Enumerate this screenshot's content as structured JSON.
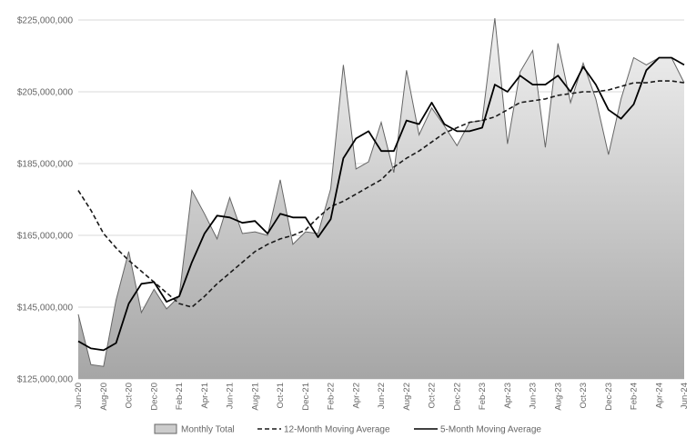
{
  "chart_data": {
    "type": "area",
    "title": "",
    "xlabel": "",
    "ylabel": "",
    "ylim": [
      125000000,
      225000000
    ],
    "y_ticks": [
      125000000,
      145000000,
      165000000,
      185000000,
      205000000,
      225000000
    ],
    "y_tick_labels": [
      "$125,000,000",
      "$145,000,000",
      "$165,000,000",
      "$185,000,000",
      "$205,000,000",
      "$225,000,000"
    ],
    "x": [
      "Jun-20",
      "Jul-20",
      "Aug-20",
      "Sep-20",
      "Oct-20",
      "Nov-20",
      "Dec-20",
      "Jan-21",
      "Feb-21",
      "Mar-21",
      "Apr-21",
      "May-21",
      "Jun-21",
      "Jul-21",
      "Aug-21",
      "Sep-21",
      "Oct-21",
      "Nov-21",
      "Dec-21",
      "Jan-22",
      "Feb-22",
      "Mar-22",
      "Apr-22",
      "May-22",
      "Jun-22",
      "Jul-22",
      "Aug-22",
      "Sep-22",
      "Oct-22",
      "Nov-22",
      "Dec-22",
      "Jan-23",
      "Feb-23",
      "Mar-23",
      "Apr-23",
      "May-23",
      "Jun-23",
      "Jul-23",
      "Aug-23",
      "Sep-23",
      "Oct-23",
      "Nov-23",
      "Dec-23",
      "Jan-24",
      "Feb-24",
      "Mar-24",
      "Apr-24",
      "May-24",
      "Jun-24"
    ],
    "x_tick_labels": [
      "Jun-20",
      "Aug-20",
      "Oct-20",
      "Dec-20",
      "Feb-21",
      "Apr-21",
      "Jun-21",
      "Aug-21",
      "Oct-21",
      "Dec-21",
      "Feb-22",
      "Apr-22",
      "Jun-22",
      "Aug-22",
      "Oct-22",
      "Dec-22",
      "Feb-23",
      "Apr-23",
      "Jun-23",
      "Aug-23",
      "Oct-23",
      "Dec-23",
      "Feb-24",
      "Apr-24",
      "Jun-24"
    ],
    "grid": "horizontal",
    "legend_position": "bottom",
    "series": [
      {
        "name": "Monthly Total",
        "style": "area",
        "color": "#cccccc",
        "values": [
          143000000,
          129000000,
          128500000,
          147000000,
          160500000,
          143500000,
          150000000,
          144500000,
          148000000,
          177500000,
          171000000,
          164000000,
          175500000,
          165500000,
          166000000,
          165000000,
          180500000,
          162500000,
          166000000,
          165500000,
          178000000,
          212500000,
          183500000,
          185500000,
          196500000,
          182500000,
          211000000,
          193000000,
          200500000,
          195500000,
          190000000,
          196500000,
          197000000,
          225500000,
          190500000,
          210500000,
          216500000,
          189500000,
          218500000,
          202000000,
          213000000,
          203000000,
          187500000,
          203000000,
          214500000,
          212500000,
          214500000,
          214500000,
          207500000
        ]
      },
      {
        "name": "12-Month Moving Average",
        "style": "dashed",
        "color": "#1a1a1a",
        "values": [
          177500000,
          172000000,
          165500000,
          161500000,
          158000000,
          155000000,
          152000000,
          149000000,
          146000000,
          145000000,
          148000000,
          151500000,
          154500000,
          157500000,
          160500000,
          162500000,
          164000000,
          165000000,
          166500000,
          170000000,
          173000000,
          174500000,
          176500000,
          178500000,
          180500000,
          184000000,
          186500000,
          188500000,
          191000000,
          193500000,
          195000000,
          196500000,
          197000000,
          198000000,
          200000000,
          202000000,
          202500000,
          203000000,
          204000000,
          204500000,
          205000000,
          205000000,
          205500000,
          206500000,
          207500000,
          207500000,
          208000000,
          208000000,
          207500000
        ]
      },
      {
        "name": "5-Month Moving Average",
        "style": "solid",
        "color": "#000000",
        "values": [
          135500000,
          133500000,
          133000000,
          135000000,
          146000000,
          151500000,
          152000000,
          146500000,
          148000000,
          157500000,
          165500000,
          170500000,
          170000000,
          168500000,
          169000000,
          165500000,
          171000000,
          170000000,
          170000000,
          164500000,
          169500000,
          186500000,
          192000000,
          194000000,
          188500000,
          188500000,
          197000000,
          196000000,
          202000000,
          196000000,
          194000000,
          194000000,
          195000000,
          207000000,
          205000000,
          209500000,
          207000000,
          207000000,
          209500000,
          205000000,
          212000000,
          207000000,
          200000000,
          197500000,
          201500000,
          211000000,
          214500000,
          214500000,
          212500000
        ]
      }
    ]
  }
}
